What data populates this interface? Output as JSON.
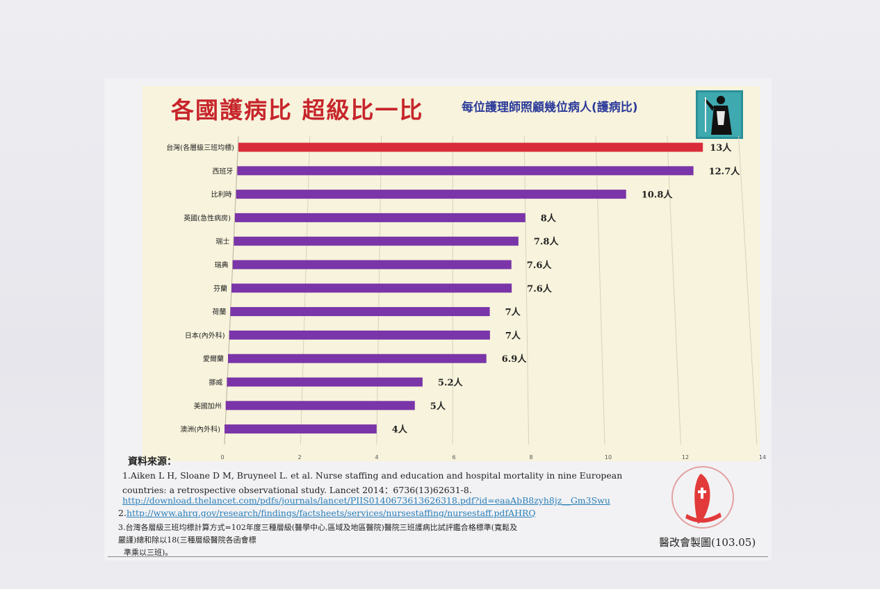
{
  "header": {
    "title": "各國護病比  超級比一比",
    "subtitle": "每位護理師照顧幾位病人(護病比)"
  },
  "colors": {
    "highlight": "#d92b3a",
    "bar": "#7a35a8",
    "title": "#c7252b",
    "subtitle": "#2b3a9a",
    "panel": "#f7f3dc"
  },
  "chart_data": {
    "type": "bar",
    "orientation": "horizontal",
    "categories": [
      "台灣(各層級三班均標)",
      "西班牙",
      "比利時",
      "英國(急性病房)",
      "瑞士",
      "瑞典",
      "芬蘭",
      "荷蘭",
      "日本(內外科)",
      "愛爾蘭",
      "挪威",
      "美國加州",
      "澳洲(內外科)"
    ],
    "values": [
      13,
      12.7,
      10.8,
      8,
      7.8,
      7.6,
      7.6,
      7,
      7,
      6.9,
      5.2,
      5,
      4
    ],
    "value_labels": [
      "13人",
      "12.7人",
      "10.8人",
      "8人",
      "7.8人",
      "7.6人",
      "7.6人",
      "7人",
      "7人",
      "6.9人",
      "5.2人",
      "5人",
      "4人"
    ],
    "highlight_index": 0,
    "xlim": [
      0,
      14
    ],
    "xticks": [
      0,
      2,
      4,
      6,
      8,
      10,
      12,
      14
    ],
    "grid": true,
    "title": "各國護病比  超級比一比",
    "xlabel": "",
    "ylabel": ""
  },
  "sources": {
    "heading": "資料來源：",
    "ref1_line1": "1.Aiken L H, Sloane D M, Bruyneel L. et al. Nurse staffing and education and hospital mortality in nine European",
    "ref1_line2": "countries: a retrospective observational study. Lancet 2014：6736(13)62631-8.",
    "ref1_link": "http://download.thelancet.com/pdfs/journals/lancet/PIIS0140673613626318.pdf?id=eaaAbB8zyh8jz__Gm3Swu",
    "ref2_prefix": "2.",
    "ref2_link": "http://www.ahrq.gov/research/findings/factsheets/services/nursestaffing/nursestaff.pdfAHRQ",
    "ref3_line1": "3.台灣各層級三班均標計算方式=102年度三種層級(醫學中心,區域及地區醫院)醫院三班護病比試評鑑合格標準(寬鬆及",
    "ref3_line2": "嚴謹)總和除以18(三種層級醫院各函會標",
    "ref3_line3": "準乘以三班)。"
  },
  "footer": {
    "caption": "醫改會製圖(103.05)"
  }
}
